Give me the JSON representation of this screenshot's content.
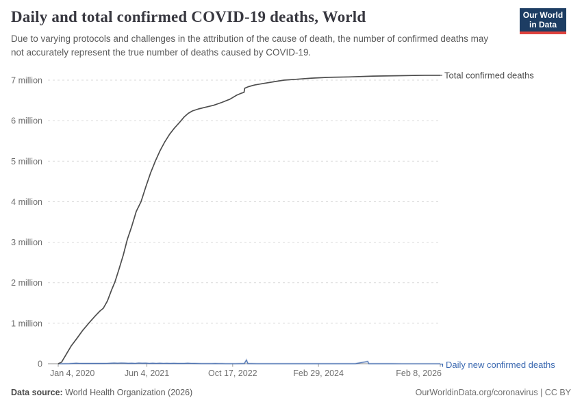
{
  "header": {
    "title": "Daily and total confirmed COVID-19 deaths, World",
    "subtitle": "Due to varying protocols and challenges in the attribution of the cause of death, the number of confirmed deaths may not accurately represent the true number of deaths caused by COVID-19.",
    "logo": {
      "line1": "Our World",
      "line2": "in Data"
    }
  },
  "footer": {
    "source_label": "Data source:",
    "source_text": " World Health Organization (2026)",
    "right_text": "OurWorldinData.org/coronavirus | CC BY"
  },
  "colors": {
    "grid": "#d9d9d9",
    "axis": "#8f8f8f",
    "tick_mark": "#999999",
    "tick_text": "#6e6e6e",
    "total_line": "#4d4d4d",
    "total_label": "#4f4f4f",
    "daily_line": "#4e73b2",
    "daily_label": "#3a68b0",
    "logo_bg": "#1d3d63",
    "logo_accent": "#e0423d"
  },
  "chart_data": {
    "type": "line",
    "title": "Daily and total confirmed COVID-19 deaths, World",
    "x_axis": {
      "start": "2020-01-04",
      "end": "2026-02-08",
      "ticks": [
        {
          "date": "2020-01-04",
          "label": "Jan 4, 2020"
        },
        {
          "date": "2021-06-04",
          "label": "Jun 4, 2021"
        },
        {
          "date": "2022-10-17",
          "label": "Oct 17, 2022"
        },
        {
          "date": "2024-02-29",
          "label": "Feb 29, 2024"
        },
        {
          "date": "2026-02-08",
          "label": "Feb 8, 2026"
        }
      ]
    },
    "y_axis": {
      "min": 0,
      "max": 7,
      "unit": "million deaths",
      "gridline": "dashed",
      "ticks": [
        {
          "v": 0,
          "label": "0"
        },
        {
          "v": 1,
          "label": "1 million"
        },
        {
          "v": 2,
          "label": "2 million"
        },
        {
          "v": 3,
          "label": "3 million"
        },
        {
          "v": 4,
          "label": "4 million"
        },
        {
          "v": 5,
          "label": "5 million"
        },
        {
          "v": 6,
          "label": "6 million"
        },
        {
          "v": 7,
          "label": "7 million"
        }
      ]
    },
    "legend_position": "end-of-line labels, right side",
    "series": [
      {
        "name": "Total confirmed deaths",
        "unit": "millions",
        "points": [
          [
            "2020-01-04",
            0
          ],
          [
            "2020-01-24",
            0.04
          ],
          [
            "2020-02-21",
            0.24
          ],
          [
            "2020-03-20",
            0.44
          ],
          [
            "2020-04-21",
            0.62
          ],
          [
            "2020-05-27",
            0.83
          ],
          [
            "2020-07-02",
            1.01
          ],
          [
            "2020-08-07",
            1.18
          ],
          [
            "2020-09-03",
            1.3
          ],
          [
            "2020-09-23",
            1.37
          ],
          [
            "2020-10-17",
            1.55
          ],
          [
            "2020-11-10",
            1.82
          ],
          [
            "2020-11-30",
            2.02
          ],
          [
            "2020-12-24",
            2.34
          ],
          [
            "2021-01-17",
            2.68
          ],
          [
            "2021-02-10",
            3.07
          ],
          [
            "2021-03-06",
            3.37
          ],
          [
            "2021-04-03",
            3.76
          ],
          [
            "2021-05-01",
            4.0
          ],
          [
            "2021-05-29",
            4.37
          ],
          [
            "2021-06-26",
            4.72
          ],
          [
            "2021-07-24",
            5.01
          ],
          [
            "2021-08-20",
            5.26
          ],
          [
            "2021-09-17",
            5.48
          ],
          [
            "2021-10-15",
            5.67
          ],
          [
            "2021-11-12",
            5.82
          ],
          [
            "2021-12-10",
            5.95
          ],
          [
            "2022-01-07",
            6.09
          ],
          [
            "2022-01-31",
            6.18
          ],
          [
            "2022-02-24",
            6.24
          ],
          [
            "2022-04-01",
            6.29
          ],
          [
            "2022-05-11",
            6.33
          ],
          [
            "2022-06-28",
            6.38
          ],
          [
            "2022-08-15",
            6.45
          ],
          [
            "2022-10-01",
            6.53
          ],
          [
            "2022-11-10",
            6.63
          ],
          [
            "2022-12-08",
            6.68
          ],
          [
            "2022-12-22",
            6.7
          ],
          [
            "2022-12-26",
            6.8
          ],
          [
            "2023-01-17",
            6.84
          ],
          [
            "2023-02-22",
            6.88
          ],
          [
            "2023-04-15",
            6.92
          ],
          [
            "2023-06-13",
            6.96
          ],
          [
            "2023-08-12",
            7.0
          ],
          [
            "2023-10-19",
            7.02
          ],
          [
            "2024-01-19",
            7.05
          ],
          [
            "2024-04-28",
            7.07
          ],
          [
            "2024-08-25",
            7.08
          ],
          [
            "2025-01-12",
            7.1
          ],
          [
            "2025-06-21",
            7.11
          ],
          [
            "2025-11-07",
            7.12
          ],
          [
            "2026-02-08",
            7.12
          ]
        ]
      },
      {
        "name": "Daily new confirmed deaths",
        "unit": "millions per day",
        "points": [
          [
            "2020-01-04",
            0.0
          ],
          [
            "2020-02-15",
            0.001
          ],
          [
            "2020-03-10",
            0.004
          ],
          [
            "2020-04-01",
            0.009
          ],
          [
            "2020-04-18",
            0.012
          ],
          [
            "2020-05-05",
            0.008
          ],
          [
            "2020-05-25",
            0.006
          ],
          [
            "2020-06-15",
            0.008
          ],
          [
            "2020-07-05",
            0.006
          ],
          [
            "2020-07-25",
            0.009
          ],
          [
            "2020-08-15",
            0.006
          ],
          [
            "2020-09-05",
            0.008
          ],
          [
            "2020-09-25",
            0.006
          ],
          [
            "2020-10-15",
            0.009
          ],
          [
            "2020-11-05",
            0.012
          ],
          [
            "2020-11-25",
            0.015
          ],
          [
            "2020-12-15",
            0.012
          ],
          [
            "2021-01-05",
            0.017
          ],
          [
            "2021-01-25",
            0.013
          ],
          [
            "2021-02-15",
            0.01
          ],
          [
            "2021-03-08",
            0.012
          ],
          [
            "2021-03-28",
            0.009
          ],
          [
            "2021-04-18",
            0.015
          ],
          [
            "2021-05-08",
            0.012
          ],
          [
            "2021-05-28",
            0.014
          ],
          [
            "2021-06-18",
            0.009
          ],
          [
            "2021-07-08",
            0.012
          ],
          [
            "2021-07-28",
            0.009
          ],
          [
            "2021-08-18",
            0.012
          ],
          [
            "2021-09-08",
            0.008
          ],
          [
            "2021-09-28",
            0.01
          ],
          [
            "2021-10-18",
            0.007
          ],
          [
            "2021-11-08",
            0.01
          ],
          [
            "2021-11-28",
            0.007
          ],
          [
            "2021-12-18",
            0.009
          ],
          [
            "2022-01-08",
            0.007
          ],
          [
            "2022-01-28",
            0.011
          ],
          [
            "2022-02-17",
            0.009
          ],
          [
            "2022-03-09",
            0.007
          ],
          [
            "2022-03-29",
            0.005
          ],
          [
            "2022-04-18",
            0.004
          ],
          [
            "2022-05-08",
            0.003
          ],
          [
            "2022-05-28",
            0.004
          ],
          [
            "2022-06-17",
            0.003
          ],
          [
            "2022-07-07",
            0.005
          ],
          [
            "2022-07-27",
            0.004
          ],
          [
            "2022-08-16",
            0.003
          ],
          [
            "2022-09-05",
            0.002
          ],
          [
            "2022-10-05",
            0.002
          ],
          [
            "2022-11-04",
            0.002
          ],
          [
            "2022-12-04",
            0.003
          ],
          [
            "2022-12-24",
            0.005
          ],
          [
            "2023-01-05",
            0.09
          ],
          [
            "2023-01-14",
            0.004
          ],
          [
            "2023-02-03",
            0.003
          ],
          [
            "2023-03-05",
            0.002
          ],
          [
            "2023-04-04",
            0.002
          ],
          [
            "2023-05-04",
            0.001
          ],
          [
            "2023-06-03",
            0.001
          ],
          [
            "2023-07-03",
            0.001
          ],
          [
            "2023-08-02",
            0.001
          ],
          [
            "2023-09-01",
            0.001
          ],
          [
            "2023-10-01",
            0.001
          ],
          [
            "2023-11-01",
            0.002
          ],
          [
            "2023-12-01",
            0.002
          ],
          [
            "2024-01-01",
            0.002
          ],
          [
            "2024-02-01",
            0.001
          ],
          [
            "2024-03-01",
            0.001
          ],
          [
            "2024-04-15",
            0.001
          ],
          [
            "2024-06-01",
            0.001
          ],
          [
            "2024-08-01",
            0.001
          ],
          [
            "2024-10-01",
            0.001
          ],
          [
            "2024-12-12",
            0.055
          ],
          [
            "2024-12-19",
            0.002
          ],
          [
            "2025-01-15",
            0.001
          ],
          [
            "2025-03-01",
            0.001
          ],
          [
            "2025-05-01",
            0.001
          ],
          [
            "2025-07-01",
            0.0005
          ],
          [
            "2025-09-01",
            0.0005
          ],
          [
            "2025-11-01",
            0.0005
          ],
          [
            "2026-01-01",
            0.0005
          ],
          [
            "2026-02-08",
            0.0005
          ]
        ]
      }
    ]
  }
}
